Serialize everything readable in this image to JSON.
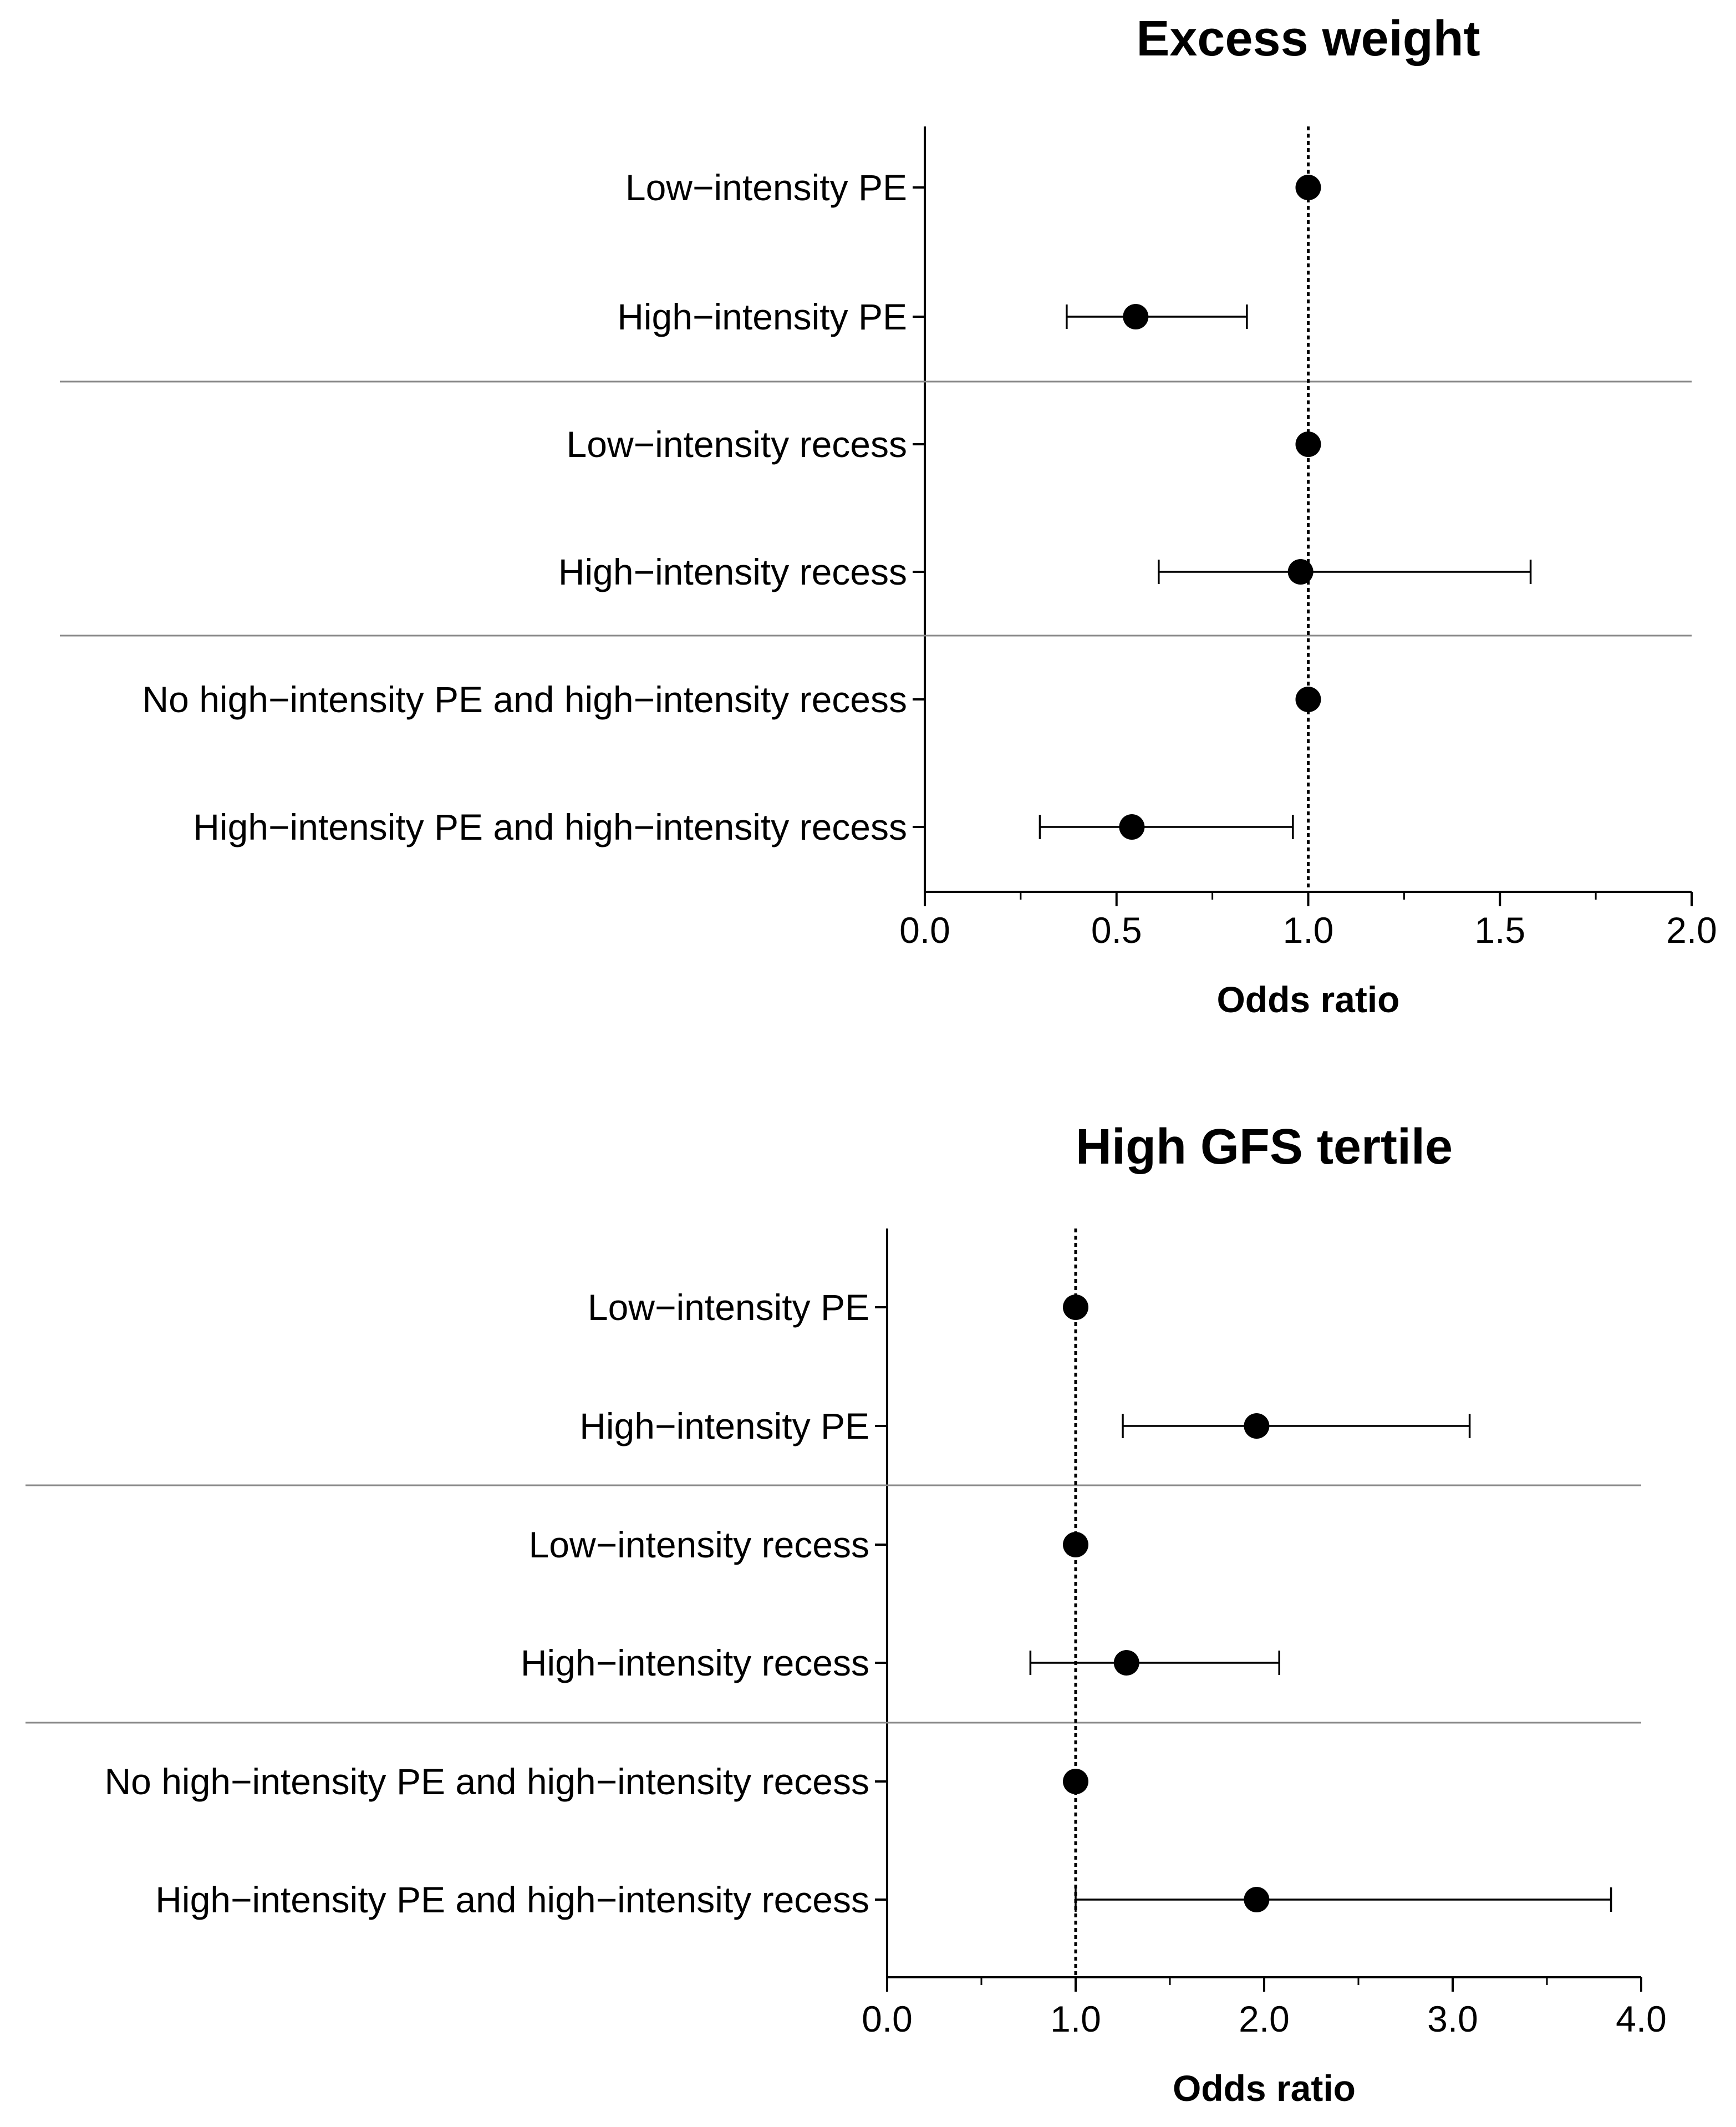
{
  "chart_data": [
    {
      "type": "forest",
      "title": "Excess weight",
      "xlabel": "Odds ratio",
      "xlim": [
        0,
        2
      ],
      "xticks": [
        0,
        0.5,
        1,
        1.5,
        2
      ],
      "xtick_labels": [
        "0.0",
        "0.5",
        "1.0",
        "1.5",
        "2.0"
      ],
      "minor_tick_step": 0.25,
      "reference_line": 1,
      "groups": [
        {
          "rows": [
            {
              "label": "Low−intensity PE",
              "or": 1.0,
              "ci_low": null,
              "ci_high": null
            },
            {
              "label": "High−intensity PE",
              "or": 0.55,
              "ci_low": 0.37,
              "ci_high": 0.84
            }
          ]
        },
        {
          "rows": [
            {
              "label": "Low−intensity recess",
              "or": 1.0,
              "ci_low": null,
              "ci_high": null
            },
            {
              "label": "High−intensity recess",
              "or": 0.98,
              "ci_low": 0.61,
              "ci_high": 1.58
            }
          ]
        },
        {
          "rows": [
            {
              "label": "No high−intensity PE and high−intensity recess",
              "or": 1.0,
              "ci_low": null,
              "ci_high": null
            },
            {
              "label": "High−intensity PE and high−intensity recess",
              "or": 0.54,
              "ci_low": 0.3,
              "ci_high": 0.96
            }
          ]
        }
      ]
    },
    {
      "type": "forest",
      "title": "High GFS tertile",
      "xlabel": "Odds ratio",
      "xlim": [
        0,
        4
      ],
      "xticks": [
        0,
        1,
        2,
        3,
        4
      ],
      "xtick_labels": [
        "0.0",
        "1.0",
        "2.0",
        "3.0",
        "4.0"
      ],
      "minor_tick_step": 0.5,
      "reference_line": 1,
      "groups": [
        {
          "rows": [
            {
              "label": "Low−intensity PE",
              "or": 1.0,
              "ci_low": null,
              "ci_high": null
            },
            {
              "label": "High−intensity PE",
              "or": 1.96,
              "ci_low": 1.25,
              "ci_high": 3.09
            }
          ]
        },
        {
          "rows": [
            {
              "label": "Low−intensity recess",
              "or": 1.0,
              "ci_low": null,
              "ci_high": null
            },
            {
              "label": "High−intensity recess",
              "or": 1.27,
              "ci_low": 0.76,
              "ci_high": 2.08
            }
          ]
        },
        {
          "rows": [
            {
              "label": "No high−intensity PE and high−intensity recess",
              "or": 1.0,
              "ci_low": null,
              "ci_high": null
            },
            {
              "label": "High−intensity PE and high−intensity recess",
              "or": 1.96,
              "ci_low": 1.0,
              "ci_high": 3.84
            }
          ]
        }
      ]
    }
  ]
}
